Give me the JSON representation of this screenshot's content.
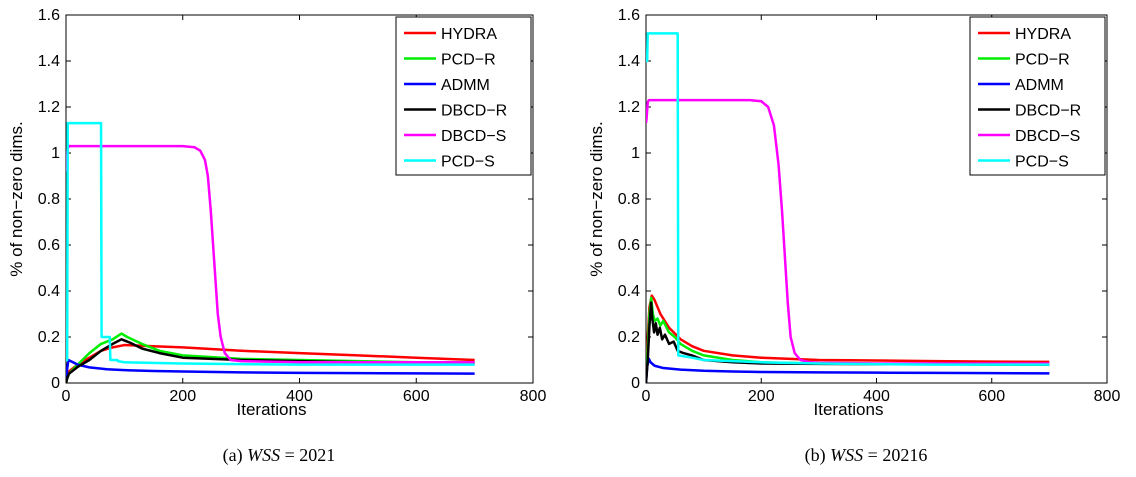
{
  "chart_data": [
    {
      "type": "line",
      "caption": {
        "prefix": "(a)",
        "var": "WSS",
        "eq": " = 2021"
      },
      "xlabel": "Iterations",
      "ylabel": "% of non−zero dims.",
      "xlim": [
        0,
        800
      ],
      "ylim": [
        0,
        1.6
      ],
      "xticks": [
        0,
        200,
        400,
        600,
        800
      ],
      "yticks": [
        0,
        0.2,
        0.4,
        0.6,
        0.8,
        1,
        1.2,
        1.4,
        1.6
      ],
      "ytick_labels": [
        "0",
        "0.2",
        "0.4",
        "0.6",
        "0.8",
        "1",
        "1.2",
        "1.4",
        "1.6"
      ],
      "legend_position": "top-right",
      "series": [
        {
          "name": "HYDRA",
          "color": "#ff0000",
          "points": [
            [
              0,
              0
            ],
            [
              2,
              0.02
            ],
            [
              5,
              0.05
            ],
            [
              20,
              0.08
            ],
            [
              40,
              0.11
            ],
            [
              60,
              0.14
            ],
            [
              80,
              0.155
            ],
            [
              100,
              0.165
            ],
            [
              150,
              0.16
            ],
            [
              200,
              0.155
            ],
            [
              300,
              0.14
            ],
            [
              400,
              0.13
            ],
            [
              500,
              0.12
            ],
            [
              600,
              0.11
            ],
            [
              700,
              0.1
            ]
          ]
        },
        {
          "name": "PCD−R",
          "color": "#00ee00",
          "points": [
            [
              0,
              0
            ],
            [
              2,
              0.02
            ],
            [
              5,
              0.04
            ],
            [
              20,
              0.08
            ],
            [
              40,
              0.13
            ],
            [
              60,
              0.17
            ],
            [
              80,
              0.19
            ],
            [
              95,
              0.215
            ],
            [
              105,
              0.2
            ],
            [
              130,
              0.17
            ],
            [
              160,
              0.14
            ],
            [
              200,
              0.12
            ],
            [
              300,
              0.105
            ],
            [
              400,
              0.1
            ],
            [
              500,
              0.095
            ],
            [
              600,
              0.09
            ],
            [
              700,
              0.09
            ]
          ]
        },
        {
          "name": "ADMM",
          "color": "#0000ff",
          "points": [
            [
              0,
              0
            ],
            [
              2,
              0.06
            ],
            [
              4,
              0.1
            ],
            [
              8,
              0.095
            ],
            [
              20,
              0.08
            ],
            [
              40,
              0.068
            ],
            [
              70,
              0.06
            ],
            [
              100,
              0.056
            ],
            [
              150,
              0.052
            ],
            [
              200,
              0.05
            ],
            [
              300,
              0.046
            ],
            [
              400,
              0.044
            ],
            [
              500,
              0.043
            ],
            [
              600,
              0.042
            ],
            [
              700,
              0.041
            ]
          ]
        },
        {
          "name": "DBCD−R",
          "color": "#000000",
          "points": [
            [
              0,
              0
            ],
            [
              2,
              0.02
            ],
            [
              5,
              0.04
            ],
            [
              20,
              0.07
            ],
            [
              40,
              0.1
            ],
            [
              60,
              0.14
            ],
            [
              80,
              0.17
            ],
            [
              95,
              0.19
            ],
            [
              110,
              0.175
            ],
            [
              130,
              0.15
            ],
            [
              160,
              0.13
            ],
            [
              200,
              0.11
            ],
            [
              300,
              0.1
            ],
            [
              400,
              0.095
            ],
            [
              500,
              0.09
            ],
            [
              600,
              0.085
            ],
            [
              700,
              0.085
            ]
          ]
        },
        {
          "name": "DBCD−S",
          "color": "#ff00ff",
          "points": [
            [
              0,
              0.92
            ],
            [
              1,
              0.95
            ],
            [
              3,
              1.02
            ],
            [
              5,
              1.03
            ],
            [
              50,
              1.03
            ],
            [
              150,
              1.03
            ],
            [
              200,
              1.03
            ],
            [
              220,
              1.025
            ],
            [
              230,
              1.01
            ],
            [
              238,
              0.97
            ],
            [
              243,
              0.9
            ],
            [
              248,
              0.75
            ],
            [
              252,
              0.6
            ],
            [
              256,
              0.45
            ],
            [
              260,
              0.3
            ],
            [
              265,
              0.2
            ],
            [
              272,
              0.13
            ],
            [
              282,
              0.1
            ],
            [
              300,
              0.095
            ],
            [
              400,
              0.09
            ],
            [
              500,
              0.09
            ],
            [
              600,
              0.09
            ],
            [
              700,
              0.09
            ]
          ]
        },
        {
          "name": "PCD−S",
          "color": "#00ffff",
          "points": [
            [
              0,
              0.1
            ],
            [
              2,
              0.1
            ],
            [
              3,
              1.13
            ],
            [
              60,
              1.13
            ],
            [
              61,
              0.2
            ],
            [
              75,
              0.2
            ],
            [
              76,
              0.1
            ],
            [
              88,
              0.1
            ],
            [
              89,
              0.095
            ],
            [
              100,
              0.09
            ],
            [
              200,
              0.085
            ],
            [
              300,
              0.082
            ],
            [
              400,
              0.08
            ],
            [
              500,
              0.08
            ],
            [
              600,
              0.08
            ],
            [
              700,
              0.08
            ]
          ]
        }
      ]
    },
    {
      "type": "line",
      "caption": {
        "prefix": "(b)",
        "var": "WSS",
        "eq": " = 20216"
      },
      "xlabel": "Iterations",
      "ylabel": "% of non−zero dims.",
      "xlim": [
        0,
        800
      ],
      "ylim": [
        0,
        1.6
      ],
      "xticks": [
        0,
        200,
        400,
        600,
        800
      ],
      "yticks": [
        0,
        0.2,
        0.4,
        0.6,
        0.8,
        1,
        1.2,
        1.4,
        1.6
      ],
      "ytick_labels": [
        "0",
        "0.2",
        "0.4",
        "0.6",
        "0.8",
        "1",
        "1.2",
        "1.4",
        "1.6"
      ],
      "legend_position": "top-right",
      "series": [
        {
          "name": "HYDRA",
          "color": "#ff0000",
          "points": [
            [
              0,
              0
            ],
            [
              3,
              0.2
            ],
            [
              6,
              0.33
            ],
            [
              10,
              0.38
            ],
            [
              15,
              0.36
            ],
            [
              25,
              0.3
            ],
            [
              40,
              0.24
            ],
            [
              60,
              0.19
            ],
            [
              80,
              0.16
            ],
            [
              100,
              0.14
            ],
            [
              150,
              0.12
            ],
            [
              200,
              0.11
            ],
            [
              300,
              0.1
            ],
            [
              400,
              0.098
            ],
            [
              500,
              0.095
            ],
            [
              600,
              0.093
            ],
            [
              700,
              0.092
            ]
          ]
        },
        {
          "name": "PCD−R",
          "color": "#00ee00",
          "points": [
            [
              0,
              0
            ],
            [
              3,
              0.15
            ],
            [
              6,
              0.3
            ],
            [
              9,
              0.37
            ],
            [
              12,
              0.3
            ],
            [
              15,
              0.27
            ],
            [
              20,
              0.28
            ],
            [
              25,
              0.25
            ],
            [
              30,
              0.27
            ],
            [
              40,
              0.22
            ],
            [
              50,
              0.2
            ],
            [
              60,
              0.17
            ],
            [
              80,
              0.14
            ],
            [
              100,
              0.12
            ],
            [
              150,
              0.1
            ],
            [
              200,
              0.09
            ],
            [
              300,
              0.085
            ],
            [
              400,
              0.083
            ],
            [
              500,
              0.082
            ],
            [
              600,
              0.08
            ],
            [
              700,
              0.08
            ]
          ]
        },
        {
          "name": "ADMM",
          "color": "#0000ff",
          "points": [
            [
              0,
              0
            ],
            [
              2,
              0.07
            ],
            [
              5,
              0.105
            ],
            [
              8,
              0.09
            ],
            [
              15,
              0.075
            ],
            [
              30,
              0.065
            ],
            [
              60,
              0.058
            ],
            [
              100,
              0.053
            ],
            [
              150,
              0.05
            ],
            [
              200,
              0.048
            ],
            [
              300,
              0.046
            ],
            [
              400,
              0.045
            ],
            [
              500,
              0.044
            ],
            [
              600,
              0.043
            ],
            [
              700,
              0.042
            ]
          ]
        },
        {
          "name": "DBCD−R",
          "color": "#000000",
          "points": [
            [
              0,
              0
            ],
            [
              3,
              0.1
            ],
            [
              6,
              0.25
            ],
            [
              9,
              0.35
            ],
            [
              11,
              0.28
            ],
            [
              14,
              0.22
            ],
            [
              17,
              0.26
            ],
            [
              20,
              0.21
            ],
            [
              24,
              0.24
            ],
            [
              28,
              0.19
            ],
            [
              33,
              0.21
            ],
            [
              40,
              0.17
            ],
            [
              48,
              0.18
            ],
            [
              55,
              0.14
            ],
            [
              65,
              0.13
            ],
            [
              80,
              0.12
            ],
            [
              100,
              0.1
            ],
            [
              150,
              0.09
            ],
            [
              200,
              0.085
            ],
            [
              300,
              0.083
            ],
            [
              400,
              0.082
            ],
            [
              500,
              0.082
            ],
            [
              600,
              0.081
            ],
            [
              700,
              0.08
            ]
          ]
        },
        {
          "name": "DBCD−S",
          "color": "#ff00ff",
          "points": [
            [
              0,
              1.13
            ],
            [
              1,
              1.15
            ],
            [
              3,
              1.22
            ],
            [
              5,
              1.23
            ],
            [
              100,
              1.23
            ],
            [
              180,
              1.23
            ],
            [
              200,
              1.225
            ],
            [
              212,
              1.2
            ],
            [
              222,
              1.12
            ],
            [
              230,
              0.95
            ],
            [
              236,
              0.75
            ],
            [
              241,
              0.55
            ],
            [
              246,
              0.35
            ],
            [
              251,
              0.2
            ],
            [
              258,
              0.13
            ],
            [
              268,
              0.1
            ],
            [
              285,
              0.09
            ],
            [
              300,
              0.088
            ],
            [
              400,
              0.085
            ],
            [
              500,
              0.085
            ],
            [
              600,
              0.085
            ],
            [
              700,
              0.085
            ]
          ]
        },
        {
          "name": "PCD−S",
          "color": "#00ffff",
          "points": [
            [
              0,
              1.4
            ],
            [
              2,
              1.4
            ],
            [
              3,
              1.52
            ],
            [
              55,
              1.52
            ],
            [
              56,
              0.12
            ],
            [
              80,
              0.11
            ],
            [
              100,
              0.1
            ],
            [
              200,
              0.09
            ],
            [
              300,
              0.085
            ],
            [
              400,
              0.082
            ],
            [
              500,
              0.08
            ],
            [
              600,
              0.08
            ],
            [
              700,
              0.08
            ]
          ]
        }
      ]
    }
  ]
}
